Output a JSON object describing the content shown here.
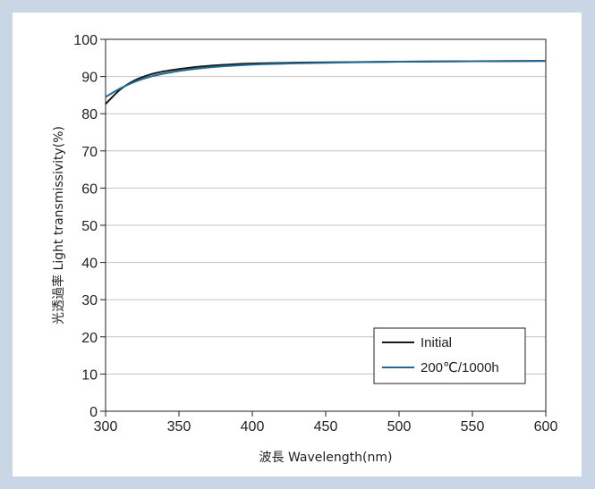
{
  "chart_data": {
    "type": "line",
    "title": "",
    "xlabel": "波長 Wavelength(nm)",
    "ylabel": "光透過率 Light transmissivity(%)",
    "xlim": [
      300,
      600
    ],
    "ylim": [
      0,
      100
    ],
    "x_ticks": [
      300,
      350,
      400,
      450,
      500,
      550,
      600
    ],
    "y_ticks": [
      0,
      10,
      20,
      30,
      40,
      50,
      60,
      70,
      80,
      90,
      100
    ],
    "grid": "horizontal",
    "legend_position": "bottom-right",
    "series": [
      {
        "name": "Initial",
        "color": "#1a1a1a",
        "x": [
          300,
          310,
          320,
          330,
          340,
          350,
          360,
          375,
          400,
          425,
          450,
          500,
          550,
          600
        ],
        "values": [
          82.6,
          86.5,
          89.0,
          90.5,
          91.4,
          92.0,
          92.5,
          93.0,
          93.5,
          93.7,
          93.8,
          94.0,
          94.1,
          94.2
        ]
      },
      {
        "name": "200℃/1000h",
        "color": "#1f6a93",
        "x": [
          300,
          310,
          320,
          330,
          340,
          350,
          360,
          375,
          400,
          425,
          450,
          500,
          550,
          600
        ],
        "values": [
          84.5,
          86.8,
          88.6,
          89.9,
          90.8,
          91.5,
          92.0,
          92.6,
          93.2,
          93.5,
          93.7,
          94.0,
          94.1,
          94.2
        ]
      }
    ]
  }
}
